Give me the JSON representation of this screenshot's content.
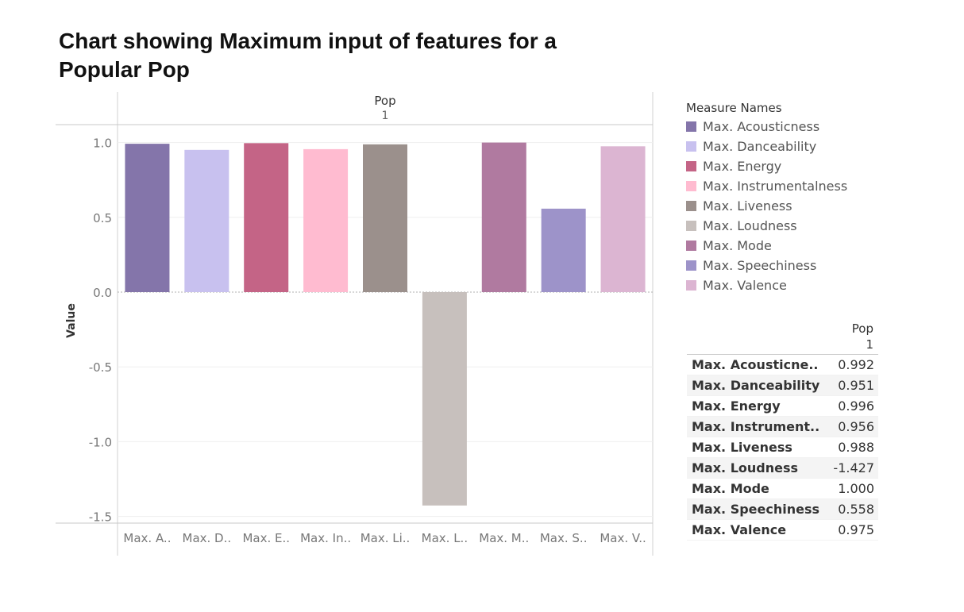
{
  "title_lines": [
    "Chart showing Maximum input of features for a",
    "Popular Pop"
  ],
  "chart_data": {
    "type": "bar",
    "column_header": "Pop",
    "column_subheader": "1",
    "ylabel": "Value",
    "ylim": [
      -1.55,
      1.1
    ],
    "yticks": [
      1.0,
      0.5,
      0.0,
      -0.5,
      -1.0,
      -1.5
    ],
    "ytick_labels": [
      "1.0",
      "0.5",
      "0.0",
      "-0.5",
      "-1.0",
      "-1.5"
    ],
    "grid": true,
    "categories": [
      "Max. Acousticness",
      "Max. Danceability",
      "Max. Energy",
      "Max. Instrumentalness",
      "Max. Liveness",
      "Max. Loudness",
      "Max. Mode",
      "Max. Speechiness",
      "Max. Valence"
    ],
    "category_tick_labels": [
      "Max. A..",
      "Max. D..",
      "Max. E..",
      "Max. In..",
      "Max. Li..",
      "Max. L..",
      "Max. M..",
      "Max. S..",
      "Max. V.."
    ],
    "values": [
      0.992,
      0.951,
      0.996,
      0.956,
      0.988,
      -1.427,
      1.0,
      0.558,
      0.975
    ],
    "colors": [
      "#8475aa",
      "#c8c1ef",
      "#c46486",
      "#ffbbd0",
      "#9b908c",
      "#c7c0bd",
      "#b07aa0",
      "#9d93c9",
      "#dcb5d2"
    ],
    "legend": {
      "title": "Measure Names",
      "placement": "right",
      "items": [
        "Max. Acousticness",
        "Max. Danceability",
        "Max. Energy",
        "Max. Instrumentalness",
        "Max. Liveness",
        "Max. Loudness",
        "Max. Mode",
        "Max. Speechiness",
        "Max. Valence"
      ]
    }
  },
  "table": {
    "header": "Pop",
    "subheader": "1",
    "rows": [
      {
        "name": "Max. Acousticne..",
        "value": "0.992"
      },
      {
        "name": "Max. Danceability",
        "value": "0.951"
      },
      {
        "name": "Max. Energy",
        "value": "0.996"
      },
      {
        "name": "Max. Instrument..",
        "value": "0.956"
      },
      {
        "name": "Max. Liveness",
        "value": "0.988"
      },
      {
        "name": "Max. Loudness",
        "value": "-1.427"
      },
      {
        "name": "Max. Mode",
        "value": "1.000"
      },
      {
        "name": "Max. Speechiness",
        "value": "0.558"
      },
      {
        "name": "Max. Valence",
        "value": "0.975"
      }
    ]
  }
}
